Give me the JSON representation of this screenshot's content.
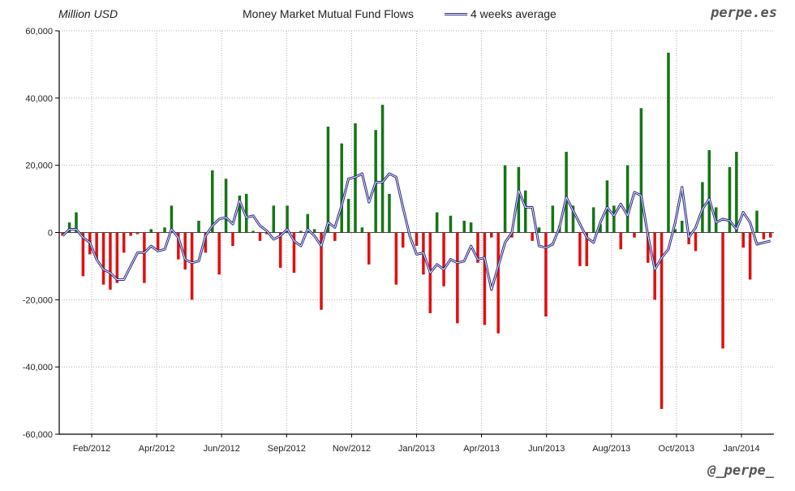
{
  "header": {
    "unit": "Million USD",
    "title": "Money Market Mutual Fund Flows",
    "brand": "perpe.es",
    "handle": "@_perpe_"
  },
  "colors": {
    "positive": "#157515",
    "negative": "#e01010",
    "average": "#2b2b86",
    "grid": "#b0b0b0",
    "axis": "#000000"
  },
  "chart_data": {
    "type": "bar",
    "title": "Money Market Mutual Fund Flows",
    "ylabel": "Million USD",
    "ylim": [
      -60000,
      60000
    ],
    "yticks": [
      -60000,
      -40000,
      -20000,
      0,
      20000,
      40000,
      60000
    ],
    "ytick_labels": [
      "-60,000",
      "-40,000",
      "-20,000",
      "0",
      "20,000",
      "40,000",
      "60,000"
    ],
    "xticks": [
      "Feb/2012",
      "Apr/2012",
      "Jun/2012",
      "Sep/2012",
      "Nov/2012",
      "Jan/2013",
      "Apr/2013",
      "Jun/2013",
      "Aug/2013",
      "Oct/2013",
      "Jan/2014"
    ],
    "grid": true,
    "legend": "top",
    "series": [
      {
        "label_kind": "bars",
        "values": [
          -1000,
          3000,
          6000,
          -13000,
          -6500,
          -8000,
          -15500,
          -17000,
          -15000,
          -6000,
          -1000,
          -500,
          -15000,
          1000,
          -5500,
          1500,
          8000,
          -8000,
          -11000,
          -20000,
          3500,
          -6000,
          18500,
          -12500,
          16000,
          -4000,
          11000,
          11500,
          500,
          -2500,
          -500,
          8000,
          -10500,
          8000,
          -12000,
          500,
          5500,
          1000,
          -23000,
          31500,
          -2500,
          26500,
          10000,
          32500,
          1500,
          -9500,
          30500,
          38000,
          11500,
          -15500,
          -4500,
          0,
          -4000,
          -12500,
          -24000,
          6000,
          -16000,
          5000,
          -27000,
          3500,
          3000,
          -9000,
          -27500,
          -1500,
          -30000,
          20000,
          -1500,
          19500,
          12500,
          -2500,
          1500,
          -25000,
          8000,
          2000,
          24000,
          8000,
          -10000,
          -10000,
          7500,
          2500,
          15500,
          8000,
          -5000,
          20000,
          -1500,
          37000,
          -9000,
          -20000,
          -52500,
          53500,
          1000,
          3500,
          -3500,
          -5500,
          15000,
          24500,
          7500,
          -34500,
          19500,
          24000,
          -4500,
          -14000,
          6500,
          -2000,
          -1500
        ]
      },
      {
        "name": "4 weeks average",
        "values": [
          -1000,
          1000,
          1000,
          -1500,
          -3000,
          -8000,
          -11000,
          -12000,
          -14000,
          -14000,
          -10000,
          -6000,
          -6000,
          -4000,
          -5500,
          -5000,
          1000,
          -1500,
          -8000,
          -9000,
          -8500,
          -1000,
          2000,
          4000,
          4500,
          2500,
          9500,
          4500,
          5000,
          2000,
          500,
          -2000,
          -1000,
          1000,
          -2500,
          -4000,
          1000,
          -1000,
          -4000,
          3000,
          1500,
          8000,
          16000,
          16500,
          17500,
          9000,
          15000,
          15000,
          17500,
          16500,
          7500,
          -1000,
          -6500,
          -6000,
          -12000,
          -9500,
          -11000,
          -8000,
          -9000,
          -8500,
          -4000,
          -8000,
          -7500,
          -17000,
          -10000,
          -3000,
          0,
          12500,
          7500,
          7500,
          -4000,
          -4500,
          -3500,
          1500,
          10500,
          6500,
          2500,
          -1500,
          -3000,
          3000,
          7500,
          5000,
          8500,
          5000,
          12000,
          11000,
          -1000,
          -11000,
          -7500,
          -5000,
          3000,
          13500,
          -1500,
          1500,
          7000,
          10000,
          3000,
          4000,
          3500,
          1000,
          6000,
          3000,
          -3500,
          -3000,
          -2500
        ]
      }
    ]
  }
}
